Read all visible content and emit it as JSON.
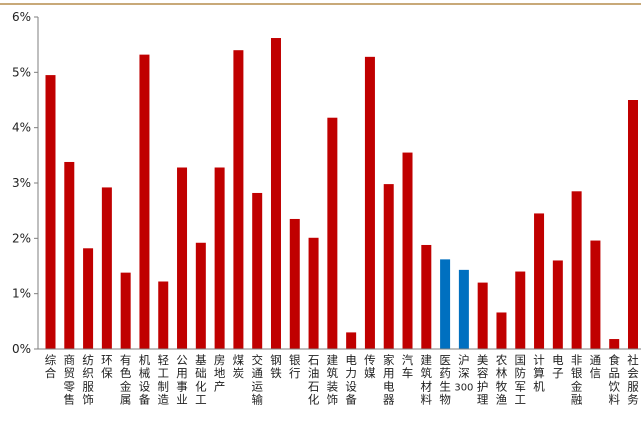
{
  "chart_data": {
    "type": "bar",
    "categories": [
      "综合",
      "商贸零售",
      "纺织服饰",
      "环保",
      "有色金属",
      "机械设备",
      "轻工制造",
      "公用事业",
      "基础化工",
      "房地产",
      "煤炭",
      "交通运输",
      "钢铁",
      "银行",
      "石油石化",
      "建筑装饰",
      "电力设备",
      "传媒",
      "家用电器",
      "汽车",
      "建筑材料",
      "医药生物",
      "沪深300",
      "美容护理",
      "农林牧渔",
      "国防军工",
      "计算机",
      "电子",
      "非银金融",
      "通信",
      "食品饮料",
      "社会服务"
    ],
    "values": [
      4.95,
      3.38,
      1.82,
      2.92,
      1.38,
      5.32,
      1.22,
      3.28,
      1.92,
      3.28,
      5.4,
      2.82,
      5.62,
      2.35,
      2.01,
      4.18,
      0.3,
      5.28,
      2.98,
      3.55,
      1.88,
      1.62,
      1.43,
      1.2,
      0.66,
      1.4,
      2.45,
      1.6,
      2.85,
      1.96,
      0.18,
      4.5
    ],
    "highlight_categories": [
      "医药生物",
      "沪深300"
    ],
    "colors": {
      "default": "#c00000",
      "highlight": "#0070c0",
      "axis": "#7f7f7f",
      "top_rule": "#c8a979"
    },
    "ylim": [
      0,
      6
    ],
    "yticks": [
      "0%",
      "1%",
      "2%",
      "3%",
      "4%",
      "5%",
      "6%"
    ],
    "grid": false,
    "legend": "none",
    "title": "",
    "xlabel": "",
    "ylabel": ""
  }
}
